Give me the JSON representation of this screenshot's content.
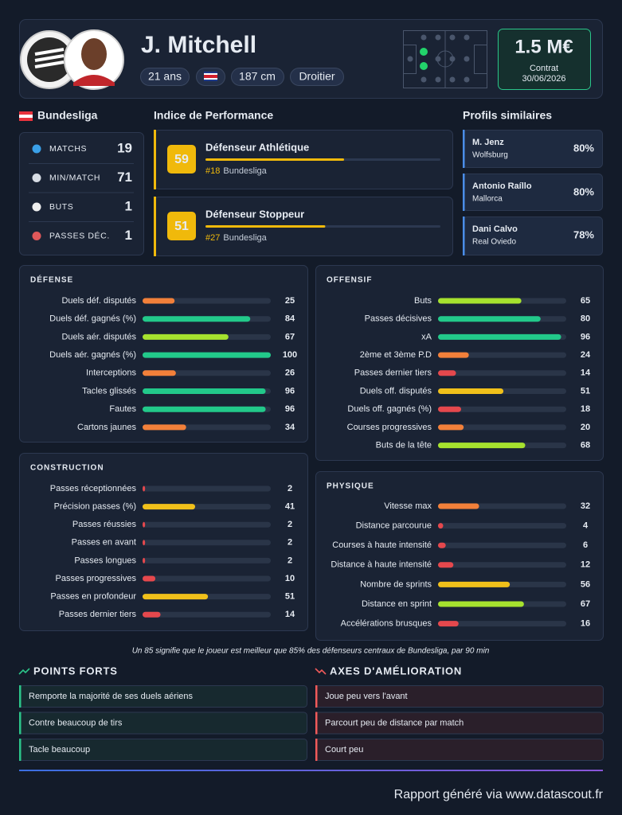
{
  "header": {
    "name": "J. Mitchell",
    "age": "21 ans",
    "height": "187 cm",
    "foot": "Droitier",
    "market_value": "1.5 M€",
    "contract_label": "Contrat",
    "contract_date": "30/06/2026"
  },
  "league": {
    "name": "Bundesliga",
    "stats": [
      {
        "label": "MATCHS",
        "value": 19
      },
      {
        "label": "MIN/MATCH",
        "value": 71
      },
      {
        "label": "BUTS",
        "value": 1
      },
      {
        "label": "PASSES DÉC.",
        "value": 1
      }
    ]
  },
  "performance": {
    "title": "Indice de Performance",
    "profiles": [
      {
        "score": 59,
        "name": "Défenseur Athlétique",
        "rank": "#18",
        "league": "Bundesliga"
      },
      {
        "score": 51,
        "name": "Défenseur Stoppeur",
        "rank": "#27",
        "league": "Bundesliga"
      }
    ]
  },
  "similar": {
    "title": "Profils similaires",
    "players": [
      {
        "name": "M. Jenz",
        "club": "Wolfsburg",
        "similarity": "80%"
      },
      {
        "name": "Antonio Raíllo",
        "club": "Mallorca",
        "similarity": "80%"
      },
      {
        "name": "Dani Calvo",
        "club": "Real Oviedo",
        "similarity": "78%"
      }
    ]
  },
  "sections": [
    {
      "title": "DÉFENSE",
      "rows": [
        {
          "label": "Duels déf. disputés",
          "value": 25
        },
        {
          "label": "Duels déf. gagnés (%)",
          "value": 84
        },
        {
          "label": "Duels aér. disputés",
          "value": 67
        },
        {
          "label": "Duels aér. gagnés (%)",
          "value": 100
        },
        {
          "label": "Interceptions",
          "value": 26
        },
        {
          "label": "Tacles glissés",
          "value": 96
        },
        {
          "label": "Fautes",
          "value": 96
        },
        {
          "label": "Cartons jaunes",
          "value": 34
        }
      ]
    },
    {
      "title": "OFFENSIF",
      "rows": [
        {
          "label": "Buts",
          "value": 65
        },
        {
          "label": "Passes décisives",
          "value": 80
        },
        {
          "label": "xA",
          "value": 96
        },
        {
          "label": "2ème et 3ème P.D",
          "value": 24
        },
        {
          "label": "Passes dernier tiers",
          "value": 14
        },
        {
          "label": "Duels off. disputés",
          "value": 51
        },
        {
          "label": "Duels off. gagnés (%)",
          "value": 18
        },
        {
          "label": "Courses progressives",
          "value": 20
        },
        {
          "label": "Buts de la tête",
          "value": 68
        }
      ]
    },
    {
      "title": "CONSTRUCTION",
      "rows": [
        {
          "label": "Passes réceptionnées",
          "value": 2
        },
        {
          "label": "Précision passes (%)",
          "value": 41
        },
        {
          "label": "Passes réussies",
          "value": 2
        },
        {
          "label": "Passes en avant",
          "value": 2
        },
        {
          "label": "Passes longues",
          "value": 2
        },
        {
          "label": "Passes progressives",
          "value": 10
        },
        {
          "label": "Passes en profondeur",
          "value": 51
        },
        {
          "label": "Passes dernier tiers",
          "value": 14
        }
      ]
    },
    {
      "title": "PHYSIQUE",
      "rows": [
        {
          "label": "Vitesse max",
          "value": 32
        },
        {
          "label": "Distance parcourue",
          "value": 4
        },
        {
          "label": "Courses à haute intensité",
          "value": 6
        },
        {
          "label": "Distance à haute intensité",
          "value": 12
        },
        {
          "label": "Nombre de sprints",
          "value": 56
        },
        {
          "label": "Distance en sprint",
          "value": 67
        },
        {
          "label": "Accélérations brusques",
          "value": 16
        }
      ]
    }
  ],
  "note": "Un 85 signifie que le joueur est meilleur que 85% des défenseurs centraux de Bundesliga, par 90 min",
  "strengths": {
    "title": "POINTS FORTS",
    "items": [
      "Remporte la majorité de ses duels aériens",
      "Contre beaucoup de tirs",
      "Tacle beaucoup"
    ]
  },
  "improvements": {
    "title": "AXES D'AMÉLIORATION",
    "items": [
      "Joue peu vers l'avant",
      "Parcourt peu de distance par match",
      "Court peu"
    ]
  },
  "footer": "Rapport généré via www.datascout.fr"
}
